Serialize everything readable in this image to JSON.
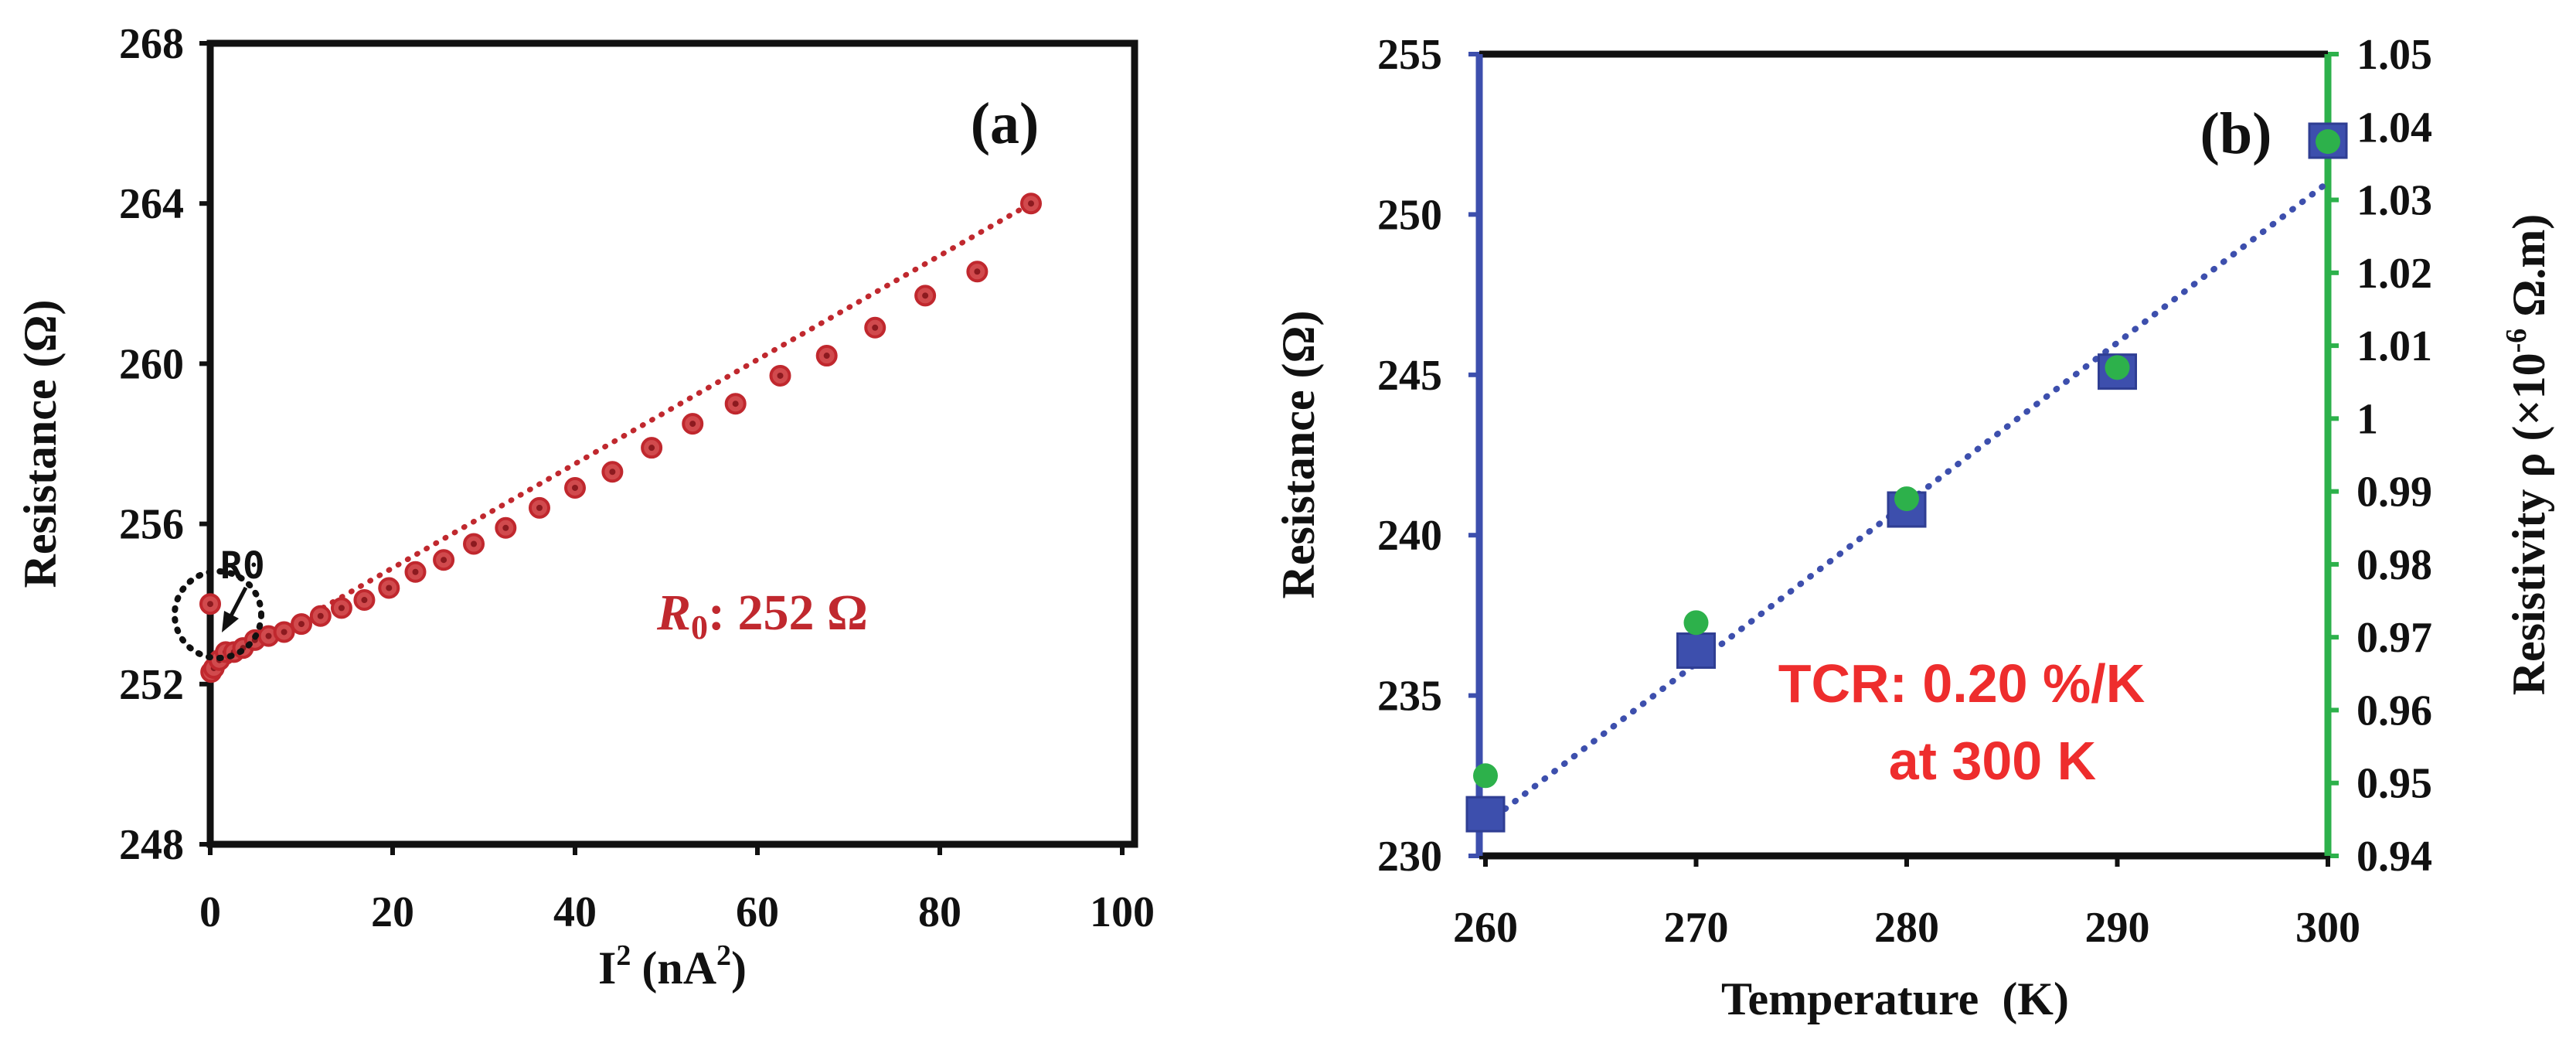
{
  "chart_data": [
    {
      "type": "scatter",
      "panel_label": "(a)",
      "xlabel": "I",
      "xlabel_sup": "2",
      "xlabel_unit_open": "(nA",
      "xlabel_unit_sup": "2",
      "xlabel_unit_close": ")",
      "ylabel": "Resistance (Ω)",
      "xlim": [
        0,
        100
      ],
      "ylim": [
        248,
        268
      ],
      "xticks": [
        "0",
        "20",
        "40",
        "60",
        "80",
        "100"
      ],
      "yticks": [
        "248",
        "252",
        "256",
        "260",
        "264",
        "268"
      ],
      "series": [
        {
          "name": "Resistance",
          "color": "#c0282e",
          "x": [
            0,
            0.1,
            0.4,
            1,
            1.7,
            2.6,
            3.6,
            4.9,
            6.4,
            8.1,
            10,
            12.1,
            14.4,
            16.9,
            19.6,
            22.5,
            25.6,
            28.9,
            32.4,
            36.1,
            40,
            44.1,
            48.4,
            52.9,
            57.6,
            62.5,
            67.6,
            72.9,
            78.4,
            84.1,
            90
          ],
          "y": [
            254.0,
            252.3,
            252.4,
            252.6,
            252.8,
            252.8,
            252.9,
            253.1,
            253.2,
            253.3,
            253.5,
            253.7,
            253.9,
            254.1,
            254.4,
            254.8,
            255.1,
            255.5,
            255.9,
            256.4,
            256.9,
            257.3,
            257.9,
            258.5,
            259.0,
            259.7,
            260.2,
            260.9,
            261.7,
            262.3,
            264.0
          ]
        }
      ],
      "trendline": {
        "style": "dotted",
        "color": "#c0282e",
        "x": [
          0,
          90
        ],
        "y": [
          252.3,
          264.0
        ]
      },
      "annotations": {
        "r0_arrow_label": "R0",
        "r0_symbol": "R",
        "r0_subscript": "0",
        "r0_value_text": ": 252 Ω"
      }
    },
    {
      "type": "scatter",
      "panel_label": "(b)",
      "xlabel": "Temperature  (K)",
      "ylabel": "Resistance (Ω)",
      "ylabel_right": "Resistivity ρ (×10",
      "ylabel_right_sup": "-6",
      "ylabel_right_unit": " Ω.m)",
      "xlim": [
        260,
        300
      ],
      "ylim": [
        230,
        255
      ],
      "ylim_right": [
        0.94,
        1.05
      ],
      "xticks": [
        "260",
        "270",
        "280",
        "290",
        "300"
      ],
      "yticks": [
        "230",
        "235",
        "240",
        "245",
        "250",
        "255"
      ],
      "yticks_right": [
        "0.94",
        "0.95",
        "0.96",
        "0.97",
        "0.98",
        "0.99",
        "1",
        "1.01",
        "1.02",
        "1.03",
        "1.04",
        "1.05"
      ],
      "left_axis_color": "#3d4fad",
      "right_axis_color": "#2db14b",
      "series": [
        {
          "name": "Resistance",
          "axis": "left",
          "marker": "square",
          "color": "#3d4fad",
          "x": [
            260,
            270,
            280,
            290,
            300
          ],
          "y": [
            231.3,
            236.4,
            240.8,
            245.1,
            252.3
          ]
        },
        {
          "name": "Resistivity",
          "axis": "right",
          "marker": "circle",
          "color": "#2db14b",
          "x": [
            260,
            270,
            280,
            290,
            300
          ],
          "y": [
            0.951,
            0.972,
            0.989,
            1.007,
            1.038
          ]
        }
      ],
      "trendline": {
        "style": "dotted",
        "color": "#3d4fad",
        "x": [
          260,
          300
        ],
        "y": [
          231.0,
          251.0
        ]
      },
      "annotations": {
        "tcr_line1": "TCR: 0.20 %/K",
        "tcr_line2": "at 300 K"
      }
    }
  ]
}
